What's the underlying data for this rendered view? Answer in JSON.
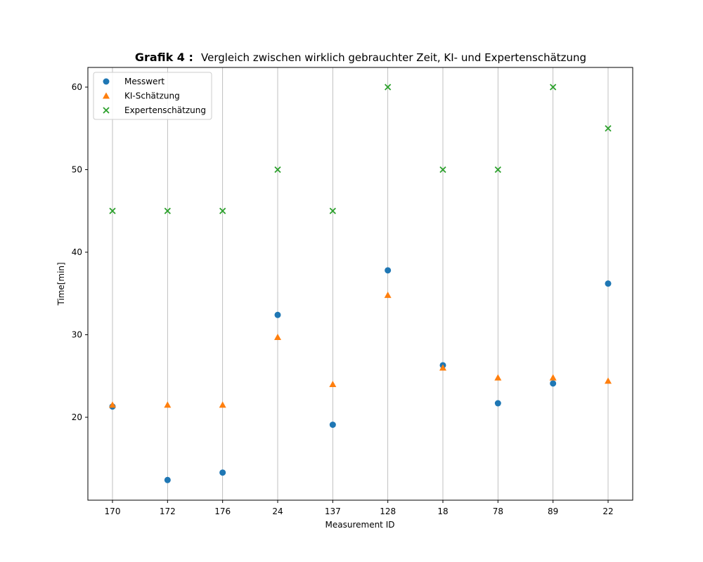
{
  "chart_data": {
    "type": "scatter",
    "title_bold": "Grafik 4 :",
    "title_rest": "Vergleich zwischen wirklich gebrauchter Zeit, KI- und Expertenschätzung",
    "xlabel": "Measurement ID",
    "ylabel": "Time[min]",
    "categories": [
      "170",
      "172",
      "176",
      "24",
      "137",
      "128",
      "18",
      "78",
      "89",
      "22"
    ],
    "ylim": [
      10,
      62.3
    ],
    "yticks": [
      20,
      30,
      40,
      50,
      60
    ],
    "grid": "x",
    "legend_position": "top-left",
    "series": [
      {
        "name": "Messwert",
        "marker": "circle",
        "color": "#1f77b4",
        "values": [
          21.3,
          12.4,
          13.3,
          32.4,
          19.1,
          37.8,
          26.3,
          21.7,
          24.1,
          36.2
        ]
      },
      {
        "name": "KI-Schätzung",
        "marker": "triangle",
        "color": "#ff7f0e",
        "values": [
          21.5,
          21.5,
          21.5,
          29.7,
          24.0,
          34.8,
          26.0,
          24.8,
          24.8,
          24.4
        ]
      },
      {
        "name": "Expertenschätzung",
        "marker": "x",
        "color": "#2ca02c",
        "values": [
          45,
          45,
          45,
          50,
          45,
          60,
          50,
          50,
          60,
          55
        ]
      }
    ]
  }
}
